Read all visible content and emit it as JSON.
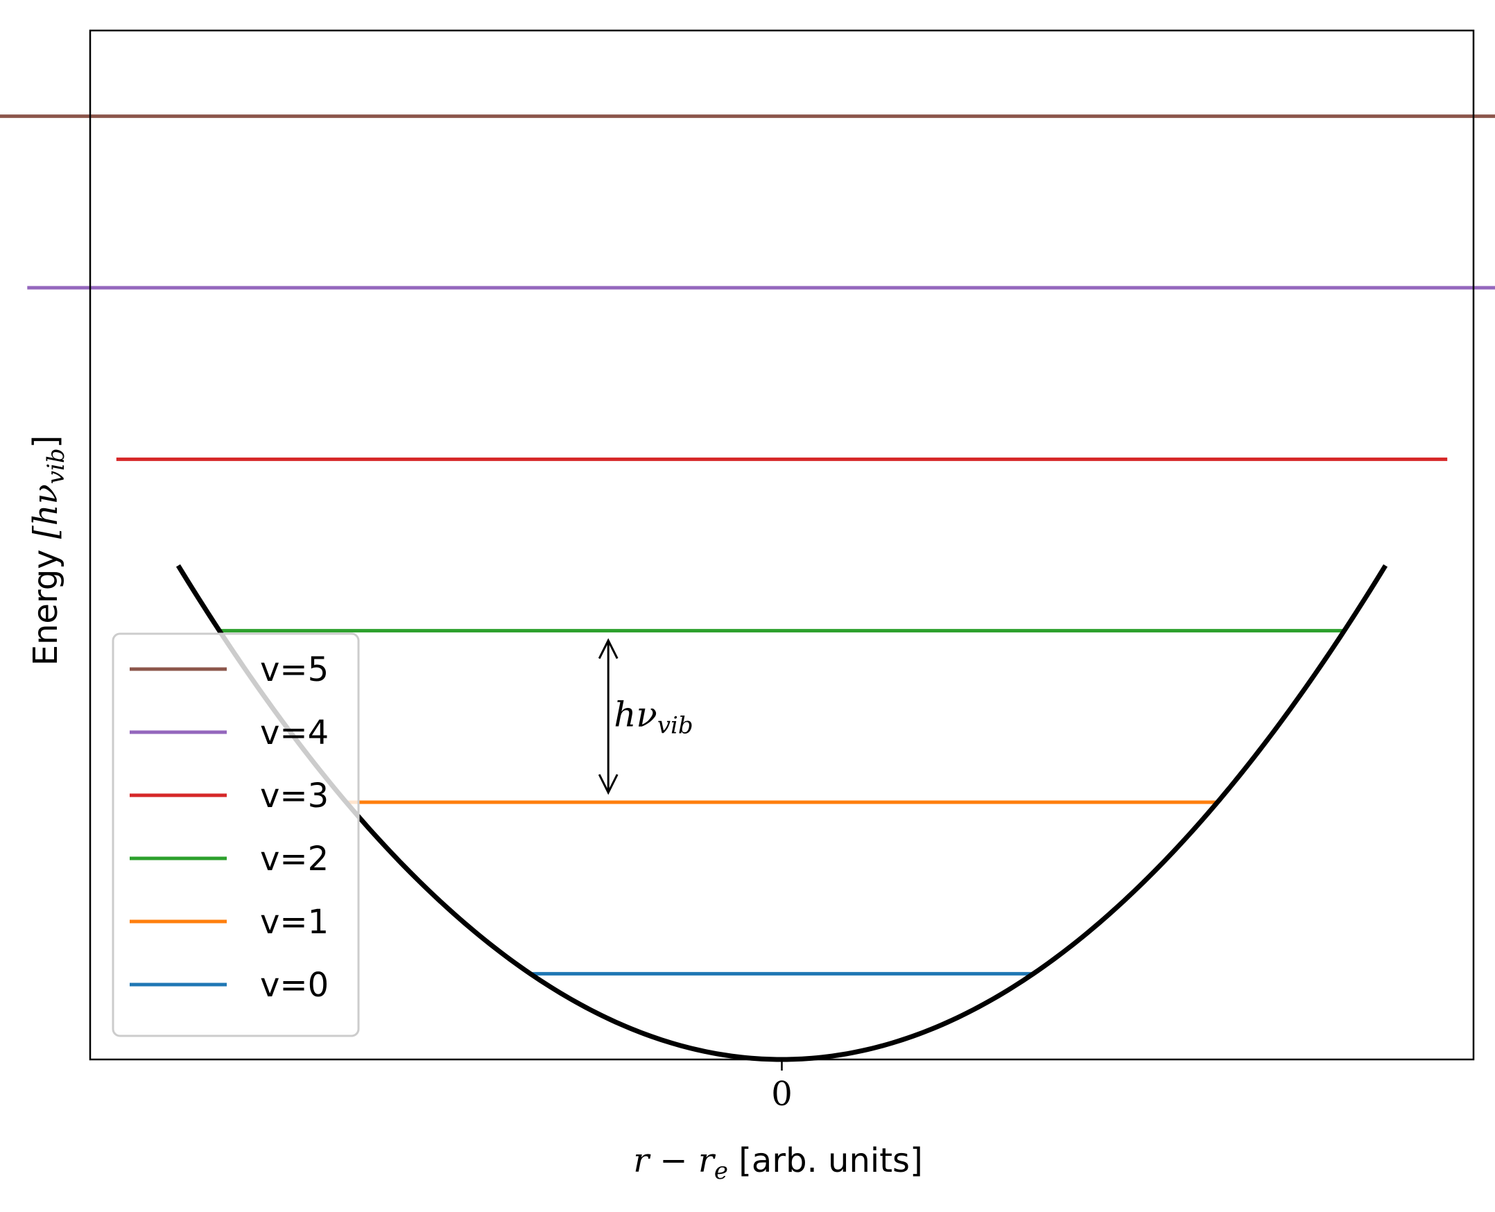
{
  "chart_data": {
    "type": "line",
    "title": "",
    "xlabel": {
      "math": "r − r",
      "sub": "e",
      "text": " [arb. units]"
    },
    "ylabel": {
      "text": "Energy ",
      "math": "[hν",
      "sub": "vib",
      "close": "]"
    },
    "x_ticks": [
      "0"
    ],
    "ylim": [
      0,
      6
    ],
    "xlim": [
      -2.75,
      2.75
    ],
    "grid": false,
    "legend_position": "lower-left",
    "potential": {
      "name": "",
      "color": "#000000",
      "form": "E = x^2 / 2",
      "x_range": [
        -2.4,
        2.4
      ]
    },
    "series": [
      {
        "name": "v=5",
        "level": 5.5,
        "color": "#8c564b"
      },
      {
        "name": "v=4",
        "level": 4.5,
        "color": "#9467bd"
      },
      {
        "name": "v=3",
        "level": 3.5,
        "color": "#d62728"
      },
      {
        "name": "v=2",
        "level": 2.5,
        "color": "#2ca02c"
      },
      {
        "name": "v=1",
        "level": 1.5,
        "color": "#ff7f0e"
      },
      {
        "name": "v=0",
        "level": 0.5,
        "color": "#1f77b4"
      }
    ],
    "annotation": {
      "math": "hν",
      "sub": "vib",
      "from_level": 1.5,
      "to_level": 2.5,
      "x": -0.69
    }
  }
}
